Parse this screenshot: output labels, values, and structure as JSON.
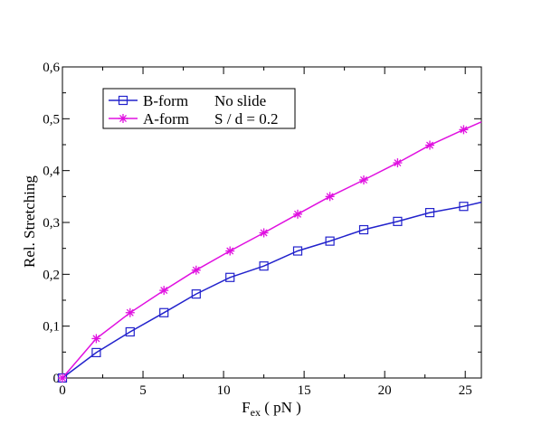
{
  "chart_data": {
    "type": "line",
    "title": "",
    "xlabel_main": "F",
    "xlabel_sub": "ex",
    "xlabel_unit": " ( pN )",
    "ylabel": "Rel. Stretching",
    "xlim": [
      0,
      26
    ],
    "ylim": [
      0,
      0.6
    ],
    "x_ticks": [
      0,
      5,
      10,
      15,
      20,
      25
    ],
    "x_tick_labels": [
      "0",
      "5",
      "10",
      "15",
      "20",
      "25"
    ],
    "y_ticks": [
      0,
      0.1,
      0.2,
      0.3,
      0.4,
      0.5,
      0.6
    ],
    "y_tick_labels": [
      "0",
      "0,1",
      "0,2",
      "0,3",
      "0,4",
      "0,5",
      "0,6"
    ],
    "grid": false,
    "legend_position": "top-left",
    "series": [
      {
        "name": "B-form",
        "annotation": "No slide",
        "color": "#2222cc",
        "marker": "square",
        "x": [
          0,
          2.1,
          4.2,
          6.3,
          8.3,
          10.4,
          12.5,
          14.6,
          16.6,
          18.7,
          20.8,
          22.8,
          24.9
        ],
        "values": [
          0,
          0.049,
          0.089,
          0.126,
          0.162,
          0.194,
          0.216,
          0.245,
          0.264,
          0.286,
          0.302,
          0.319,
          0.331
        ],
        "line_end": [
          26,
          0.339
        ]
      },
      {
        "name": "A-form",
        "annotation": "S / d = 0.2",
        "color": "#e010e0",
        "marker": "asterisk",
        "x": [
          0,
          2.1,
          4.2,
          6.3,
          8.3,
          10.4,
          12.5,
          14.6,
          16.6,
          18.7,
          20.8,
          22.8,
          24.9
        ],
        "values": [
          0,
          0.076,
          0.126,
          0.169,
          0.208,
          0.245,
          0.28,
          0.316,
          0.35,
          0.382,
          0.415,
          0.449,
          0.479
        ],
        "line_end": [
          26,
          0.494
        ]
      }
    ]
  }
}
